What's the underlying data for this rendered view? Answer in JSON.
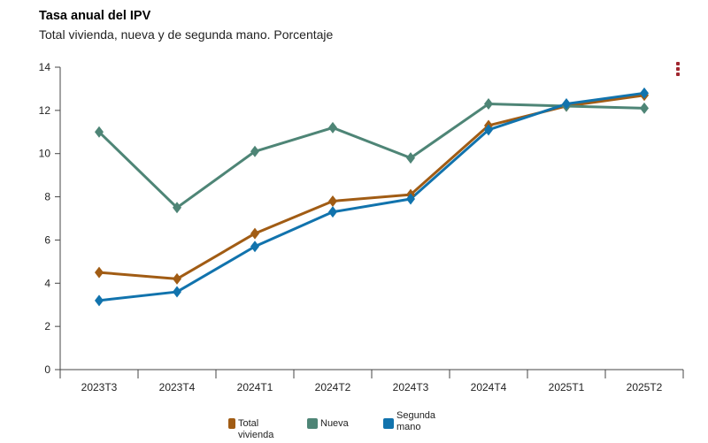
{
  "chart_data": {
    "type": "line",
    "title": "Tasa anual del IPV",
    "subtitle": "Total vivienda, nueva y de segunda mano. Porcentaje",
    "categories": [
      "2023T3",
      "2023T4",
      "2024T1",
      "2024T2",
      "2024T3",
      "2024T4",
      "2025T1",
      "2025T2"
    ],
    "ylim": [
      0,
      14
    ],
    "yticks": [
      0,
      2,
      4,
      6,
      8,
      10,
      12,
      14
    ],
    "grid": false,
    "legend_position": "bottom",
    "series": [
      {
        "name": "Total vivienda",
        "color": "#a15c14",
        "values": [
          4.5,
          4.2,
          6.3,
          7.8,
          8.1,
          11.3,
          12.2,
          12.7
        ]
      },
      {
        "name": "Nueva",
        "color": "#4e8576",
        "values": [
          11.0,
          7.5,
          10.1,
          11.2,
          9.8,
          12.3,
          12.2,
          12.1
        ]
      },
      {
        "name": "Segunda mano",
        "color": "#1173ad",
        "values": [
          3.2,
          3.6,
          5.7,
          7.3,
          7.9,
          11.1,
          12.3,
          12.8
        ]
      }
    ]
  },
  "ui": {
    "menu_icon": "vertical-ellipsis-icon",
    "menu_color": "#a0262e"
  }
}
